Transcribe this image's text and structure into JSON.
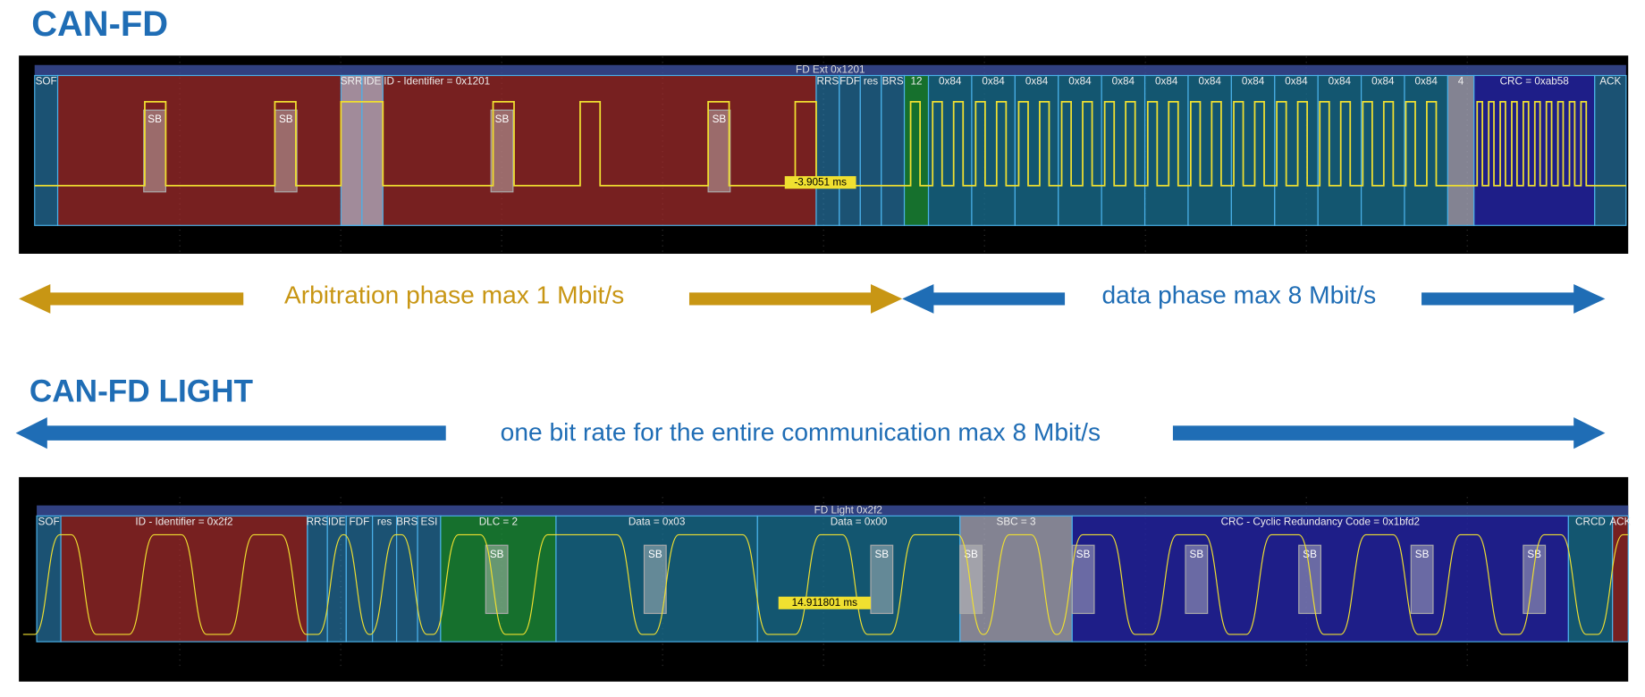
{
  "slide": {
    "title_top": "CAN-FD",
    "title_bottom": "CAN-FD LIGHT",
    "arbitration_arrow": "Arbitration phase max 1 Mbit/s",
    "data_arrow": "data phase max 8 Mbit/s",
    "light_arrow": "one bit rate for the entire communication max 8 Mbit/s"
  },
  "scope_fd": {
    "frame": "FD Ext 0x1201",
    "fields": [
      "SOF",
      "ID - Identifier = 0x1201",
      "SRR",
      "IDE",
      "RRS",
      "FDF",
      "res",
      "BRS",
      "12",
      "0x84",
      "0x84",
      "0x84",
      "0x84",
      "0x84",
      "0x84",
      "0x84",
      "0x84",
      "0x84",
      "0x84",
      "0x84",
      "0x84",
      "4",
      "CRC = 0xab58",
      "ACK"
    ],
    "stuff_bits": [
      "SB",
      "SB",
      "SB",
      "SB"
    ],
    "cursor": "-3.9051 ms"
  },
  "scope_light": {
    "frame": "FD Light 0x2f2",
    "fields": [
      "SOF",
      "ID - Identifier = 0x2f2",
      "RRS",
      "IDE",
      "FDF",
      "res",
      "BRS",
      "ESI",
      "DLC = 2",
      "Data = 0x03",
      "Data = 0x00",
      "SBC = 3",
      "CRC - Cyclic Redundancy Code = 0x1bfd2",
      "CRCD",
      "ACK"
    ],
    "stuff_bits": [
      "SB",
      "SB",
      "SB",
      "SB",
      "SB",
      "SB",
      "SB",
      "SB",
      "SB"
    ],
    "cursor": "14.911801 ms"
  }
}
